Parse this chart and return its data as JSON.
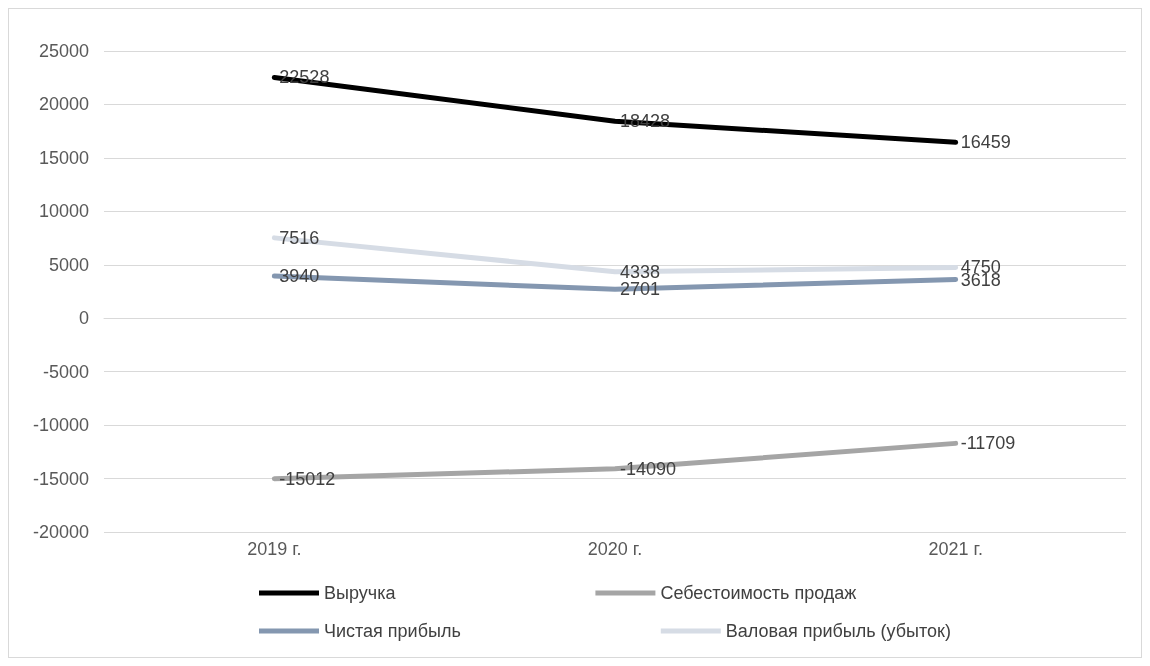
{
  "chart_data": {
    "type": "line",
    "categories": [
      "2019 г.",
      "2020 г.",
      "2021 г."
    ],
    "series": [
      {
        "name": "Выручка",
        "color": "#000000",
        "values": [
          22528,
          18428,
          16459
        ]
      },
      {
        "name": "Себестоимость продаж",
        "color": "#a5a5a5",
        "values": [
          -15012,
          -14090,
          -11709
        ]
      },
      {
        "name": "Чистая прибыль",
        "color": "#8497b0",
        "values": [
          3940,
          2701,
          3618
        ]
      },
      {
        "name": "Валовая прибыль (убыток)",
        "color": "#d6dce5",
        "values": [
          7516,
          4338,
          4750
        ]
      }
    ],
    "ylim": [
      -20000,
      25000
    ],
    "yticks": [
      -20000,
      -15000,
      -10000,
      -5000,
      0,
      5000,
      10000,
      15000,
      20000,
      25000
    ],
    "grid": "y",
    "legend": "bottom",
    "data_labels": true,
    "marker": "none",
    "line_style": "solid"
  }
}
